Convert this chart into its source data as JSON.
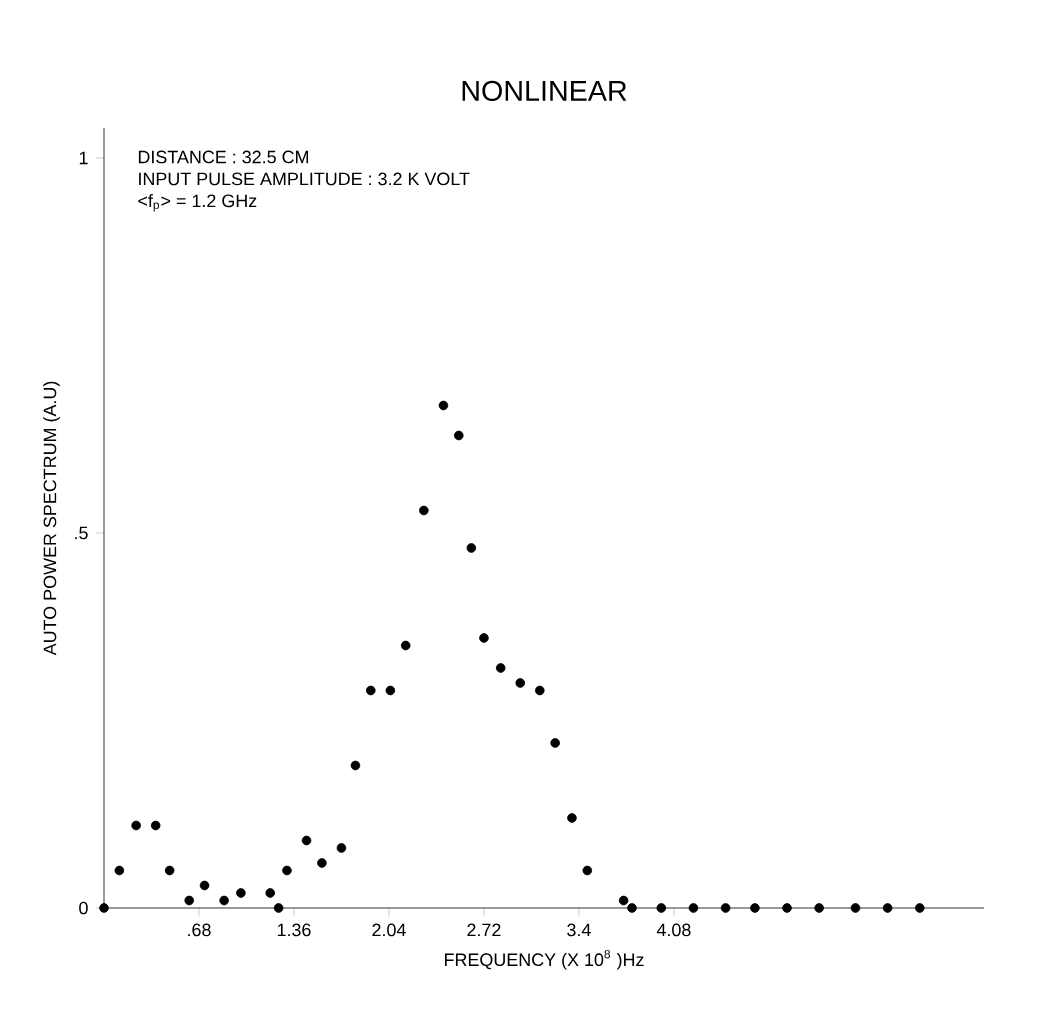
{
  "chart_data": {
    "type": "scatter",
    "title": "NONLINEAR",
    "xlabel": "FREQUENCY (X 10$^{8}$ )Hz",
    "ylabel": "AUTO POWER SPECTRUM (A.U)",
    "annotations": [
      "DISTANCE : 32.5 CM",
      "INPUT PULSE AMPLITUDE : 3.2 K VOLT",
      "<f$_{p}$> = 1.2 GHz"
    ],
    "x": [
      0,
      0.11,
      0.23,
      0.37,
      0.47,
      0.61,
      0.72,
      0.86,
      0.98,
      1.19,
      1.25,
      1.31,
      1.45,
      1.56,
      1.7,
      1.8,
      1.91,
      2.05,
      2.16,
      2.29,
      2.43,
      2.54,
      2.63,
      2.72,
      2.84,
      2.98,
      3.12,
      3.23,
      3.35,
      3.46,
      3.72,
      3.78,
      3.99,
      4.22,
      4.45,
      4.66,
      4.89,
      5.12,
      5.38,
      5.61,
      5.84
    ],
    "series": [
      {
        "color": "#000000",
        "values": [
          0,
          0.05,
          0.11,
          0.11,
          0.05,
          0.01,
          0.03,
          0.01,
          0.02,
          0.02,
          0,
          0.05,
          0.09,
          0.06,
          0.08,
          0.19,
          0.29,
          0.29,
          0.35,
          0.53,
          0.67,
          0.63,
          0.48,
          0.36,
          0.32,
          0.3,
          0.29,
          0.22,
          0.12,
          0.05,
          0.01,
          0,
          0,
          0,
          0,
          0,
          0,
          0,
          0,
          0,
          0
        ]
      }
    ],
    "xlim": [
      0,
      6.3
    ],
    "ylim": [
      0,
      1.04
    ],
    "xticks": [
      {
        "value": 0.68,
        "label": ".68"
      },
      1.36,
      2.04,
      2.72,
      3.4,
      4.08
    ],
    "yticks": [
      0,
      {
        "value": 0.5,
        "label": ".5"
      },
      1
    ],
    "grid": false,
    "marker": "circle"
  }
}
